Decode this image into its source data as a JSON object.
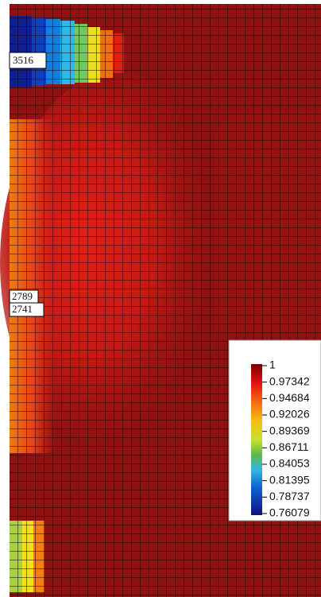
{
  "node_labels": [
    "3516",
    "2789",
    "2741"
  ],
  "colorbar": {
    "ticks": [
      1,
      0.97342,
      0.94684,
      0.92026,
      0.89369,
      0.86711,
      0.84053,
      0.81395,
      0.78737,
      0.76079
    ]
  }
}
